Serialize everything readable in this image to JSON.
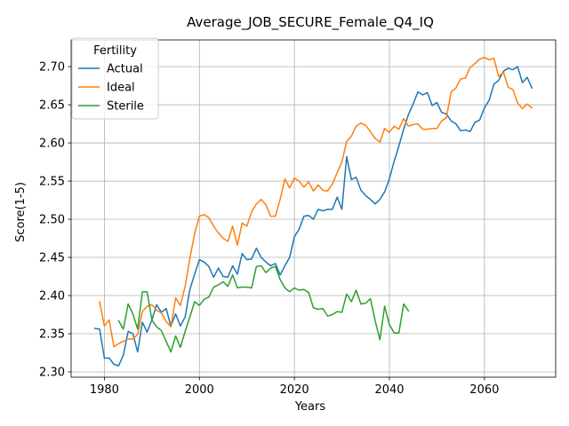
{
  "chart_data": {
    "type": "line",
    "title": "Average_JOB_SECURE_Female_Q4_IQ",
    "xlabel": "Years",
    "ylabel": "Score(1-5)",
    "xlim": [
      1973,
      2075
    ],
    "ylim": [
      2.293,
      2.735
    ],
    "xticks": [
      1980,
      2000,
      2020,
      2040,
      2060
    ],
    "yticks": [
      2.3,
      2.35,
      2.4,
      2.45,
      2.5,
      2.55,
      2.6,
      2.65,
      2.7
    ],
    "ytick_labels": [
      "2.30",
      "2.35",
      "2.40",
      "2.45",
      "2.50",
      "2.55",
      "2.60",
      "2.65",
      "2.70"
    ],
    "grid": true,
    "legend": {
      "title": "Fertility",
      "position": "top-left"
    },
    "series": [
      {
        "name": "Actual",
        "color": "#1f77b4",
        "x": [
          1978,
          1979,
          1980,
          1981,
          1982,
          1983,
          1984,
          1985,
          1986,
          1987,
          1988,
          1989,
          1990,
          1991,
          1992,
          1993,
          1994,
          1995,
          1996,
          1997,
          1998,
          1999,
          2000,
          2001,
          2002,
          2003,
          2004,
          2005,
          2006,
          2007,
          2008,
          2009,
          2010,
          2011,
          2012,
          2013,
          2014,
          2015,
          2016,
          2017,
          2018,
          2019,
          2020,
          2021,
          2022,
          2023,
          2024,
          2025,
          2026,
          2027,
          2028,
          2029,
          2030,
          2031,
          2032,
          2033,
          2034,
          2035,
          2036,
          2037,
          2038,
          2039,
          2040,
          2041,
          2042,
          2043,
          2044,
          2045,
          2046,
          2047,
          2048,
          2049,
          2050,
          2051,
          2052,
          2053,
          2054,
          2055,
          2056,
          2057,
          2058,
          2059,
          2060,
          2061,
          2062,
          2063,
          2064,
          2065,
          2066,
          2067,
          2068,
          2069,
          2070
        ],
        "y": [
          2.357,
          2.356,
          2.318,
          2.318,
          2.31,
          2.308,
          2.322,
          2.353,
          2.35,
          2.326,
          2.365,
          2.352,
          2.368,
          2.388,
          2.378,
          2.383,
          2.36,
          2.376,
          2.36,
          2.372,
          2.408,
          2.428,
          2.447,
          2.444,
          2.438,
          2.424,
          2.436,
          2.425,
          2.424,
          2.439,
          2.428,
          2.455,
          2.447,
          2.448,
          2.462,
          2.45,
          2.444,
          2.439,
          2.442,
          2.427,
          2.439,
          2.45,
          2.477,
          2.487,
          2.504,
          2.505,
          2.5,
          2.513,
          2.511,
          2.513,
          2.513,
          2.529,
          2.513,
          2.582,
          2.552,
          2.555,
          2.538,
          2.531,
          2.526,
          2.52,
          2.526,
          2.536,
          2.553,
          2.576,
          2.596,
          2.618,
          2.637,
          2.651,
          2.667,
          2.663,
          2.666,
          2.649,
          2.653,
          2.64,
          2.638,
          2.629,
          2.625,
          2.616,
          2.617,
          2.615,
          2.627,
          2.63,
          2.646,
          2.656,
          2.677,
          2.682,
          2.694,
          2.698,
          2.696,
          2.7,
          2.679,
          2.686,
          2.672
        ]
      },
      {
        "name": "Ideal",
        "color": "#ff7f0e",
        "x": [
          1979,
          1980,
          1981,
          1982,
          1983,
          1984,
          1985,
          1986,
          1987,
          1988,
          1989,
          1990,
          1991,
          1992,
          1993,
          1994,
          1995,
          1996,
          1997,
          1998,
          1999,
          2000,
          2001,
          2002,
          2003,
          2004,
          2005,
          2006,
          2007,
          2008,
          2009,
          2010,
          2011,
          2012,
          2013,
          2014,
          2015,
          2016,
          2017,
          2018,
          2019,
          2020,
          2021,
          2022,
          2023,
          2024,
          2025,
          2026,
          2027,
          2028,
          2029,
          2030,
          2031,
          2032,
          2033,
          2034,
          2035,
          2036,
          2037,
          2038,
          2039,
          2040,
          2041,
          2042,
          2043,
          2044,
          2045,
          2046,
          2047,
          2048,
          2049,
          2050,
          2051,
          2052,
          2053,
          2054,
          2055,
          2056,
          2057,
          2058,
          2059,
          2060,
          2061,
          2062,
          2063,
          2064,
          2065,
          2066,
          2067,
          2068,
          2069,
          2070
        ],
        "y": [
          2.392,
          2.36,
          2.368,
          2.333,
          2.337,
          2.34,
          2.343,
          2.343,
          2.349,
          2.379,
          2.386,
          2.388,
          2.381,
          2.377,
          2.366,
          2.359,
          2.397,
          2.387,
          2.412,
          2.449,
          2.481,
          2.504,
          2.506,
          2.502,
          2.491,
          2.482,
          2.475,
          2.471,
          2.491,
          2.466,
          2.495,
          2.491,
          2.51,
          2.52,
          2.526,
          2.519,
          2.504,
          2.504,
          2.526,
          2.553,
          2.541,
          2.554,
          2.55,
          2.542,
          2.549,
          2.537,
          2.545,
          2.538,
          2.537,
          2.546,
          2.561,
          2.575,
          2.602,
          2.609,
          2.622,
          2.626,
          2.623,
          2.615,
          2.606,
          2.601,
          2.619,
          2.614,
          2.622,
          2.618,
          2.632,
          2.622,
          2.624,
          2.625,
          2.618,
          2.618,
          2.619,
          2.619,
          2.629,
          2.633,
          2.667,
          2.672,
          2.684,
          2.685,
          2.699,
          2.704,
          2.71,
          2.712,
          2.709,
          2.711,
          2.687,
          2.693,
          2.673,
          2.67,
          2.652,
          2.645,
          2.651,
          2.646
        ]
      },
      {
        "name": "Sterile",
        "color": "#2ca02c",
        "x": [
          1983,
          1984,
          1985,
          1986,
          1987,
          1988,
          1989,
          1990,
          1991,
          1992,
          1993,
          1994,
          1995,
          1996,
          1997,
          1998,
          1999,
          2000,
          2001,
          2002,
          2003,
          2004,
          2005,
          2006,
          2007,
          2008,
          2009,
          2010,
          2011,
          2012,
          2013,
          2014,
          2015,
          2016,
          2017,
          2018,
          2019,
          2020,
          2021,
          2022,
          2023,
          2024,
          2025,
          2026,
          2027,
          2028,
          2029,
          2030,
          2031,
          2032,
          2033,
          2034,
          2035,
          2036,
          2037,
          2038,
          2039,
          2040,
          2041,
          2042,
          2043,
          2044
        ],
        "y": [
          2.367,
          2.356,
          2.389,
          2.376,
          2.356,
          2.405,
          2.405,
          2.368,
          2.359,
          2.354,
          2.34,
          2.326,
          2.347,
          2.332,
          2.353,
          2.372,
          2.392,
          2.387,
          2.395,
          2.398,
          2.411,
          2.414,
          2.418,
          2.412,
          2.427,
          2.41,
          2.411,
          2.411,
          2.41,
          2.438,
          2.439,
          2.43,
          2.436,
          2.438,
          2.421,
          2.41,
          2.405,
          2.41,
          2.407,
          2.408,
          2.404,
          2.384,
          2.382,
          2.383,
          2.373,
          2.375,
          2.379,
          2.378,
          2.402,
          2.392,
          2.407,
          2.389,
          2.39,
          2.396,
          2.367,
          2.342,
          2.386,
          2.362,
          2.351,
          2.351,
          2.389,
          2.38
        ]
      }
    ]
  }
}
